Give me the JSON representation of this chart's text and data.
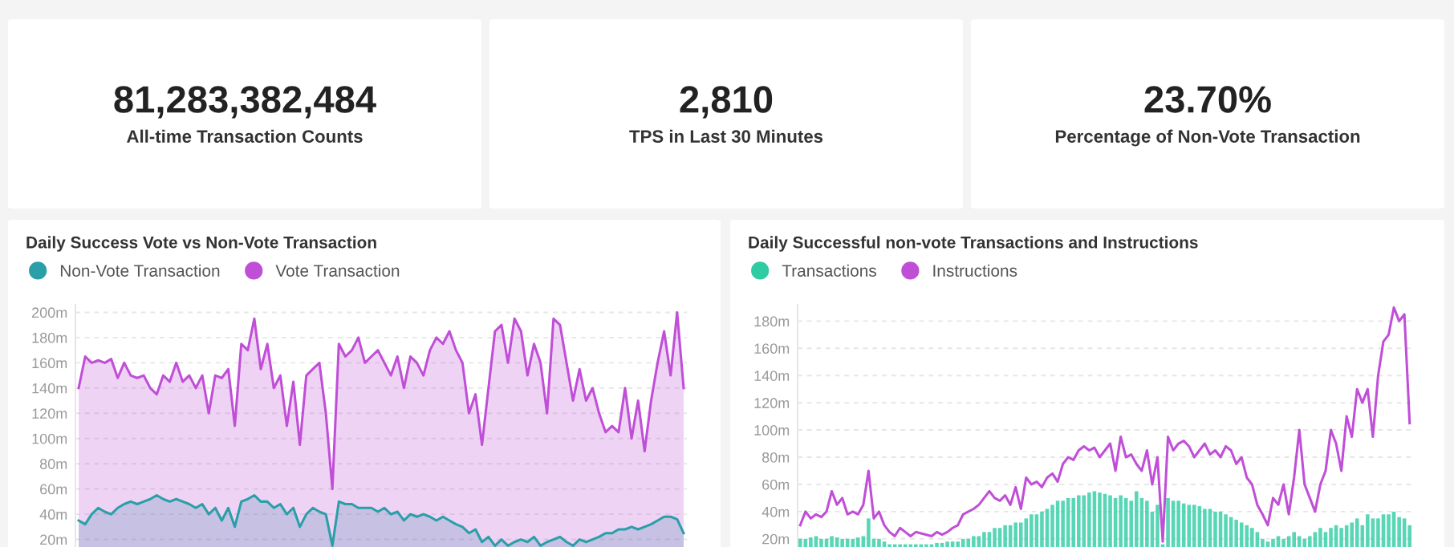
{
  "chart_data": [
    {
      "type": "other",
      "title": "81,283,382,484",
      "subtitle": "All-time Transaction Counts"
    },
    {
      "type": "other",
      "title": "2,810",
      "subtitle": "TPS in Last 30 Minutes"
    },
    {
      "type": "other",
      "title": "23.70%",
      "subtitle": "Percentage of Non-Vote Transaction"
    },
    {
      "type": "area",
      "title": "Daily Success Vote vs Non-Vote Transaction",
      "legend": "top left",
      "grid": "y",
      "tick_labels": "y",
      "categories": [
        null,
        null,
        null,
        null,
        null,
        null,
        null,
        null,
        null,
        null,
        null,
        null,
        null,
        null,
        null,
        null,
        null,
        null,
        null,
        null,
        null,
        null,
        null,
        null,
        null,
        null,
        null,
        null,
        null,
        null,
        null,
        null,
        null,
        null,
        null,
        null,
        null,
        null,
        null,
        null,
        null,
        null,
        null,
        null,
        null,
        null,
        null,
        null,
        null,
        null,
        null,
        null,
        null,
        null,
        null,
        null,
        null,
        null,
        null,
        null,
        null,
        null,
        null,
        null,
        null,
        null,
        null,
        null,
        null,
        null,
        null,
        null,
        null,
        null,
        null,
        null,
        null,
        null,
        null,
        null,
        null,
        null,
        null,
        null,
        null,
        null,
        null,
        null,
        null,
        null,
        null,
        null,
        null,
        null
      ],
      "ylim": [
        14,
        206
      ],
      "yticks": [
        {
          "value": 20,
          "label": "20m"
        },
        {
          "value": 40,
          "label": "40m"
        },
        {
          "value": 60,
          "label": "60m"
        },
        {
          "value": 80,
          "label": "80m"
        },
        {
          "value": 100,
          "label": "100m"
        },
        {
          "value": 120,
          "label": "120m"
        },
        {
          "value": 140,
          "label": "140m"
        },
        {
          "value": 160,
          "label": "160m"
        },
        {
          "value": 180,
          "label": "180m"
        },
        {
          "value": 200,
          "label": "200m"
        }
      ],
      "series": [
        {
          "name": "Non-Vote Transaction",
          "color": "#2a9fa8",
          "values": [
            35,
            32,
            40,
            45,
            42,
            40,
            45,
            48,
            50,
            48,
            50,
            52,
            55,
            52,
            50,
            52,
            50,
            48,
            45,
            48,
            40,
            45,
            35,
            45,
            30,
            50,
            52,
            55,
            50,
            50,
            45,
            48,
            40,
            45,
            30,
            40,
            45,
            42,
            40,
            15,
            50,
            48,
            48,
            45,
            45,
            45,
            42,
            45,
            40,
            42,
            35,
            40,
            38,
            40,
            38,
            35,
            38,
            35,
            32,
            30,
            25,
            28,
            18,
            22,
            15,
            20,
            15,
            18,
            20,
            18,
            22,
            15,
            18,
            20,
            22,
            18,
            15,
            20,
            18,
            20,
            22,
            25,
            25,
            28,
            28,
            30,
            28,
            30,
            32,
            35,
            38,
            38,
            36,
            25
          ]
        },
        {
          "name": "Vote Transaction",
          "color": "#c04fd8",
          "values": [
            140,
            165,
            160,
            162,
            160,
            163,
            148,
            160,
            150,
            148,
            150,
            140,
            135,
            150,
            145,
            160,
            145,
            150,
            140,
            150,
            120,
            150,
            148,
            155,
            110,
            175,
            170,
            195,
            155,
            175,
            140,
            150,
            110,
            145,
            95,
            150,
            155,
            160,
            120,
            60,
            175,
            165,
            170,
            180,
            160,
            165,
            170,
            160,
            150,
            165,
            140,
            165,
            160,
            150,
            170,
            180,
            175,
            185,
            170,
            160,
            120,
            135,
            95,
            140,
            185,
            190,
            160,
            195,
            185,
            150,
            175,
            160,
            120,
            195,
            190,
            160,
            130,
            155,
            130,
            140,
            120,
            105,
            110,
            105,
            140,
            100,
            130,
            90,
            130,
            160,
            185,
            150,
            200,
            140
          ]
        }
      ]
    },
    {
      "type": "bar",
      "title": "Daily Successful non-vote Transactions and Instructions",
      "legend": "top left",
      "grid": "y",
      "tick_labels": "y",
      "categories": [
        null,
        null,
        null,
        null,
        null,
        null,
        null,
        null,
        null,
        null,
        null,
        null,
        null,
        null,
        null,
        null,
        null,
        null,
        null,
        null,
        null,
        null,
        null,
        null,
        null,
        null,
        null,
        null,
        null,
        null,
        null,
        null,
        null,
        null,
        null,
        null,
        null,
        null,
        null,
        null,
        null,
        null,
        null,
        null,
        null,
        null,
        null,
        null,
        null,
        null,
        null,
        null,
        null,
        null,
        null,
        null,
        null,
        null,
        null,
        null,
        null,
        null,
        null,
        null,
        null,
        null,
        null,
        null,
        null,
        null,
        null,
        null,
        null,
        null,
        null,
        null,
        null,
        null,
        null,
        null,
        null,
        null,
        null,
        null,
        null,
        null,
        null,
        null,
        null,
        null,
        null,
        null,
        null,
        null,
        null,
        null,
        null,
        null,
        null,
        null,
        null,
        null,
        null,
        null,
        null,
        null,
        null,
        null,
        null,
        null,
        null,
        null,
        null,
        null,
        null,
        null,
        null
      ],
      "ylim": [
        14,
        192
      ],
      "yticks": [
        {
          "value": 20,
          "label": "20m"
        },
        {
          "value": 40,
          "label": "40m"
        },
        {
          "value": 60,
          "label": "60m"
        },
        {
          "value": 80,
          "label": "80m"
        },
        {
          "value": 100,
          "label": "100m"
        },
        {
          "value": 120,
          "label": "120m"
        },
        {
          "value": 140,
          "label": "140m"
        },
        {
          "value": 160,
          "label": "160m"
        },
        {
          "value": 180,
          "label": "180m"
        }
      ],
      "series": [
        {
          "name": "Transactions",
          "color": "#2ecca3",
          "type": "bar",
          "values": [
            20,
            20,
            21,
            22,
            20,
            20,
            22,
            21,
            20,
            20,
            20,
            21,
            22,
            35,
            20,
            20,
            18,
            16,
            16,
            16,
            16,
            16,
            16,
            16,
            16,
            16,
            17,
            17,
            18,
            18,
            18,
            20,
            20,
            22,
            22,
            25,
            25,
            28,
            28,
            30,
            30,
            32,
            32,
            35,
            38,
            38,
            40,
            42,
            45,
            48,
            48,
            50,
            50,
            52,
            52,
            54,
            55,
            54,
            53,
            52,
            50,
            52,
            50,
            48,
            55,
            50,
            48,
            40,
            45,
            16,
            50,
            48,
            48,
            46,
            45,
            45,
            44,
            42,
            42,
            40,
            40,
            38,
            36,
            34,
            32,
            30,
            28,
            25,
            20,
            18,
            20,
            22,
            20,
            22,
            25,
            22,
            20,
            22,
            25,
            28,
            25,
            28,
            30,
            28,
            30,
            32,
            35,
            30,
            38,
            35,
            35,
            38,
            38,
            40,
            36,
            35,
            30
          ]
        },
        {
          "name": "Instructions",
          "color": "#c04fd8",
          "type": "line",
          "values": [
            30,
            40,
            35,
            38,
            36,
            40,
            55,
            45,
            50,
            38,
            40,
            38,
            45,
            70,
            35,
            40,
            30,
            25,
            22,
            28,
            25,
            22,
            25,
            24,
            23,
            22,
            25,
            23,
            25,
            28,
            30,
            38,
            40,
            42,
            45,
            50,
            55,
            50,
            48,
            52,
            45,
            58,
            42,
            65,
            60,
            62,
            58,
            65,
            68,
            62,
            75,
            80,
            78,
            85,
            88,
            85,
            87,
            80,
            85,
            90,
            70,
            95,
            80,
            82,
            75,
            70,
            85,
            60,
            80,
            18,
            95,
            85,
            90,
            92,
            88,
            80,
            85,
            90,
            82,
            85,
            80,
            88,
            85,
            75,
            80,
            65,
            60,
            45,
            38,
            30,
            50,
            45,
            60,
            38,
            65,
            100,
            60,
            50,
            40,
            60,
            70,
            100,
            90,
            70,
            110,
            95,
            130,
            120,
            130,
            95,
            140,
            165,
            170,
            190,
            180,
            185,
            105
          ]
        }
      ]
    }
  ]
}
